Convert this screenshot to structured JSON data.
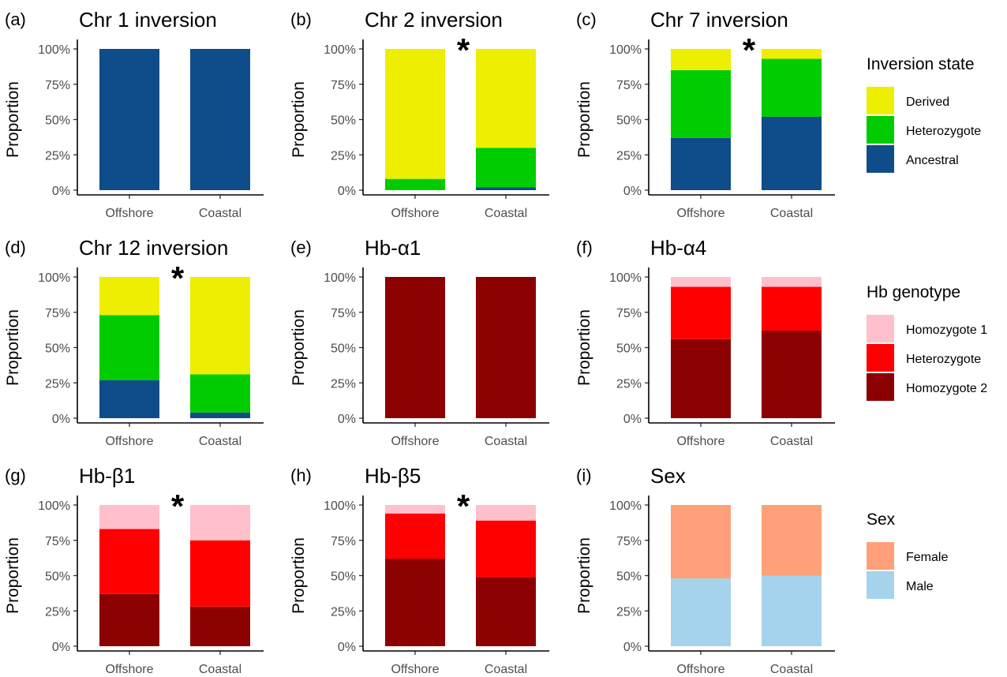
{
  "chart_data": [
    {
      "type": "bar",
      "stacked": true,
      "panel_label": "(a)",
      "title": "Chr 1 inversion",
      "significant": false,
      "legend_group": "inversion",
      "xlabel": "",
      "ylabel": "Proportion",
      "ylim": [
        0,
        1
      ],
      "yticks": [
        "0%",
        "25%",
        "50%",
        "75%",
        "100%"
      ],
      "categories": [
        "Offshore",
        "Coastal"
      ],
      "series": [
        {
          "name": "Ancestral",
          "color": "#0F4C8A",
          "values": [
            1.0,
            1.0
          ]
        },
        {
          "name": "Heterozygote",
          "color": "#00CC00",
          "values": [
            0.0,
            0.0
          ]
        },
        {
          "name": "Derived",
          "color": "#EEEE00",
          "values": [
            0.0,
            0.0
          ]
        }
      ]
    },
    {
      "type": "bar",
      "stacked": true,
      "panel_label": "(b)",
      "title": "Chr 2 inversion",
      "significant": true,
      "legend_group": "inversion",
      "xlabel": "",
      "ylabel": "Proportion",
      "ylim": [
        0,
        1
      ],
      "yticks": [
        "0%",
        "25%",
        "50%",
        "75%",
        "100%"
      ],
      "categories": [
        "Offshore",
        "Coastal"
      ],
      "series": [
        {
          "name": "Ancestral",
          "color": "#0F4C8A",
          "values": [
            0.0,
            0.02
          ]
        },
        {
          "name": "Heterozygote",
          "color": "#00CC00",
          "values": [
            0.08,
            0.28
          ]
        },
        {
          "name": "Derived",
          "color": "#EEEE00",
          "values": [
            0.92,
            0.7
          ]
        }
      ]
    },
    {
      "type": "bar",
      "stacked": true,
      "panel_label": "(c)",
      "title": "Chr 7 inversion",
      "significant": true,
      "legend_group": "inversion",
      "xlabel": "",
      "ylabel": "Proportion",
      "ylim": [
        0,
        1
      ],
      "yticks": [
        "0%",
        "25%",
        "50%",
        "75%",
        "100%"
      ],
      "categories": [
        "Offshore",
        "Coastal"
      ],
      "series": [
        {
          "name": "Ancestral",
          "color": "#0F4C8A",
          "values": [
            0.37,
            0.52
          ]
        },
        {
          "name": "Heterozygote",
          "color": "#00CC00",
          "values": [
            0.48,
            0.41
          ]
        },
        {
          "name": "Derived",
          "color": "#EEEE00",
          "values": [
            0.15,
            0.07
          ]
        }
      ]
    },
    {
      "type": "bar",
      "stacked": true,
      "panel_label": "(d)",
      "title": "Chr 12 inversion",
      "significant": true,
      "legend_group": "inversion",
      "xlabel": "",
      "ylabel": "Proportion",
      "ylim": [
        0,
        1
      ],
      "yticks": [
        "0%",
        "25%",
        "50%",
        "75%",
        "100%"
      ],
      "categories": [
        "Offshore",
        "Coastal"
      ],
      "series": [
        {
          "name": "Ancestral",
          "color": "#0F4C8A",
          "values": [
            0.27,
            0.04
          ]
        },
        {
          "name": "Heterozygote",
          "color": "#00CC00",
          "values": [
            0.46,
            0.27
          ]
        },
        {
          "name": "Derived",
          "color": "#EEEE00",
          "values": [
            0.27,
            0.69
          ]
        }
      ]
    },
    {
      "type": "bar",
      "stacked": true,
      "panel_label": "(e)",
      "title": "Hb-α1",
      "significant": false,
      "legend_group": "hb",
      "xlabel": "",
      "ylabel": "Proportion",
      "ylim": [
        0,
        1
      ],
      "yticks": [
        "0%",
        "25%",
        "50%",
        "75%",
        "100%"
      ],
      "categories": [
        "Offshore",
        "Coastal"
      ],
      "series": [
        {
          "name": "Homozygote 2",
          "color": "#8B0000",
          "values": [
            1.0,
            1.0
          ]
        },
        {
          "name": "Heterozygote",
          "color": "#FF0000",
          "values": [
            0.0,
            0.0
          ]
        },
        {
          "name": "Homozygote 1",
          "color": "#FFC0CB",
          "values": [
            0.0,
            0.0
          ]
        }
      ]
    },
    {
      "type": "bar",
      "stacked": true,
      "panel_label": "(f)",
      "title": "Hb-α4",
      "significant": false,
      "legend_group": "hb",
      "xlabel": "",
      "ylabel": "Proportion",
      "ylim": [
        0,
        1
      ],
      "yticks": [
        "0%",
        "25%",
        "50%",
        "75%",
        "100%"
      ],
      "categories": [
        "Offshore",
        "Coastal"
      ],
      "series": [
        {
          "name": "Homozygote 2",
          "color": "#8B0000",
          "values": [
            0.56,
            0.62
          ]
        },
        {
          "name": "Heterozygote",
          "color": "#FF0000",
          "values": [
            0.37,
            0.31
          ]
        },
        {
          "name": "Homozygote 1",
          "color": "#FFC0CB",
          "values": [
            0.07,
            0.07
          ]
        }
      ]
    },
    {
      "type": "bar",
      "stacked": true,
      "panel_label": "(g)",
      "title": "Hb-β1",
      "significant": true,
      "legend_group": "hb",
      "xlabel": "",
      "ylabel": "Proportion",
      "ylim": [
        0,
        1
      ],
      "yticks": [
        "0%",
        "25%",
        "50%",
        "75%",
        "100%"
      ],
      "categories": [
        "Offshore",
        "Coastal"
      ],
      "series": [
        {
          "name": "Homozygote 2",
          "color": "#8B0000",
          "values": [
            0.37,
            0.28
          ]
        },
        {
          "name": "Heterozygote",
          "color": "#FF0000",
          "values": [
            0.46,
            0.47
          ]
        },
        {
          "name": "Homozygote 1",
          "color": "#FFC0CB",
          "values": [
            0.17,
            0.25
          ]
        }
      ]
    },
    {
      "type": "bar",
      "stacked": true,
      "panel_label": "(h)",
      "title": "Hb-β5",
      "significant": true,
      "legend_group": "hb",
      "xlabel": "",
      "ylabel": "Proportion",
      "ylim": [
        0,
        1
      ],
      "yticks": [
        "0%",
        "25%",
        "50%",
        "75%",
        "100%"
      ],
      "categories": [
        "Offshore",
        "Coastal"
      ],
      "series": [
        {
          "name": "Homozygote 2",
          "color": "#8B0000",
          "values": [
            0.62,
            0.49
          ]
        },
        {
          "name": "Heterozygote",
          "color": "#FF0000",
          "values": [
            0.32,
            0.4
          ]
        },
        {
          "name": "Homozygote 1",
          "color": "#FFC0CB",
          "values": [
            0.06,
            0.11
          ]
        }
      ]
    },
    {
      "type": "bar",
      "stacked": true,
      "panel_label": "(i)",
      "title": "Sex",
      "significant": false,
      "legend_group": "sex",
      "xlabel": "",
      "ylabel": "Proportion",
      "ylim": [
        0,
        1
      ],
      "yticks": [
        "0%",
        "25%",
        "50%",
        "75%",
        "100%"
      ],
      "categories": [
        "Offshore",
        "Coastal"
      ],
      "series": [
        {
          "name": "Male",
          "color": "#A6D3EC",
          "values": [
            0.48,
            0.5
          ]
        },
        {
          "name": "Female",
          "color": "#FFA07A",
          "values": [
            0.52,
            0.5
          ]
        }
      ]
    }
  ],
  "significance_marker": "*",
  "legends": [
    {
      "group": "inversion",
      "title": "Inversion state",
      "items": [
        {
          "label": "Derived",
          "color": "#EEEE00"
        },
        {
          "label": "Heterozygote",
          "color": "#00CC00"
        },
        {
          "label": "Ancestral",
          "color": "#0F4C8A"
        }
      ]
    },
    {
      "group": "hb",
      "title": "Hb genotype",
      "items": [
        {
          "label": "Homozygote 1",
          "color": "#FFC0CB"
        },
        {
          "label": "Heterozygote",
          "color": "#FF0000"
        },
        {
          "label": "Homozygote 2",
          "color": "#8B0000"
        }
      ]
    },
    {
      "group": "sex",
      "title": "Sex",
      "items": [
        {
          "label": "Female",
          "color": "#FFA07A"
        },
        {
          "label": "Male",
          "color": "#A6D3EC"
        }
      ]
    }
  ]
}
